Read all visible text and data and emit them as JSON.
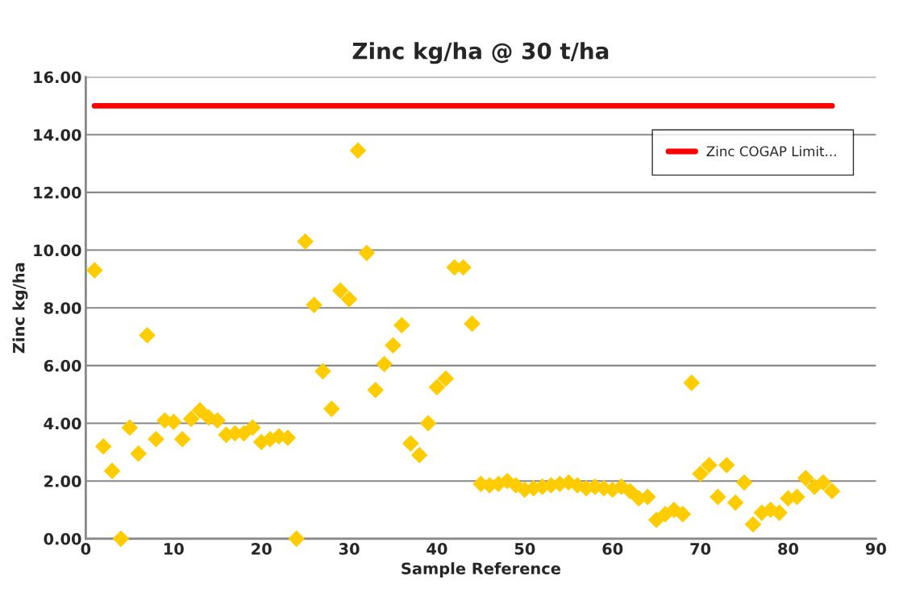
{
  "chart_data": {
    "type": "scatter",
    "title": "Zinc kg/ha @ 30 t/ha",
    "xlabel": "Sample Reference",
    "ylabel": "Zinc kg/ha",
    "xlim": [
      0,
      90
    ],
    "xticks": [
      0,
      10,
      20,
      30,
      40,
      50,
      60,
      70,
      80,
      90
    ],
    "ylim": [
      0,
      16
    ],
    "yticks": [
      {
        "value": 0,
        "label": "0.00"
      },
      {
        "value": 2,
        "label": "2.00"
      },
      {
        "value": 4,
        "label": "4.00"
      },
      {
        "value": 6,
        "label": "6.00"
      },
      {
        "value": 8,
        "label": "8.00"
      },
      {
        "value": 10,
        "label": "10.00"
      },
      {
        "value": 12,
        "label": "12.00"
      },
      {
        "value": 14,
        "label": "14.00"
      },
      {
        "value": 16,
        "label": "16.00"
      }
    ],
    "grid": "y",
    "legend": "top right",
    "series": [
      {
        "marker": "diamond",
        "color": "#ffcc00",
        "x": [
          1,
          2,
          3,
          4,
          5,
          6,
          7,
          8,
          9,
          10,
          11,
          12,
          13,
          14,
          15,
          16,
          17,
          18,
          19,
          20,
          21,
          22,
          23,
          24,
          25,
          26,
          27,
          28,
          29,
          30,
          31,
          32,
          33,
          34,
          35,
          36,
          37,
          38,
          39,
          40,
          41,
          42,
          43,
          44,
          45,
          46,
          47,
          48,
          49,
          50,
          51,
          52,
          53,
          54,
          55,
          56,
          57,
          58,
          59,
          60,
          61,
          62,
          63,
          64,
          65,
          66,
          67,
          68,
          69,
          70,
          71,
          72,
          73,
          74,
          75,
          76,
          77,
          78,
          79,
          80,
          81,
          82,
          83,
          84,
          85
        ],
        "values": [
          9.3,
          3.2,
          2.35,
          0,
          3.85,
          2.95,
          7.05,
          3.45,
          4.1,
          4.05,
          3.45,
          4.15,
          4.45,
          4.2,
          4.1,
          3.6,
          3.65,
          3.65,
          3.85,
          3.35,
          3.45,
          3.55,
          3.5,
          0,
          10.3,
          8.1,
          5.8,
          4.5,
          8.6,
          8.3,
          13.45,
          9.9,
          5.15,
          6.05,
          6.7,
          7.4,
          3.3,
          2.9,
          4.0,
          5.25,
          5.55,
          9.4,
          9.4,
          7.45,
          1.9,
          1.85,
          1.9,
          2.0,
          1.85,
          1.7,
          1.75,
          1.8,
          1.85,
          1.9,
          1.95,
          1.85,
          1.75,
          1.8,
          1.75,
          1.7,
          1.8,
          1.65,
          1.4,
          1.45,
          0.65,
          0.85,
          1.0,
          0.85,
          5.4,
          2.25,
          2.55,
          1.45,
          2.55,
          1.25,
          1.95,
          0.5,
          0.9,
          1.0,
          0.9,
          1.4,
          1.45,
          2.1,
          1.8,
          1.95,
          1.65
        ]
      },
      {
        "type": "line",
        "marker": "none",
        "name": "Zinc COGAP Limit...",
        "color": "#ff0000",
        "x": [
          1,
          85
        ],
        "values": [
          15,
          15
        ]
      }
    ]
  }
}
